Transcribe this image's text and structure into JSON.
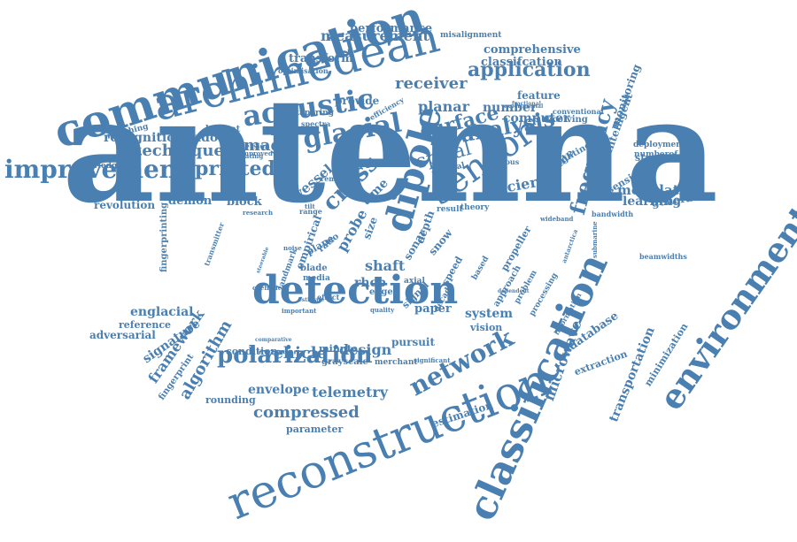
{
  "colors": {
    "word": "#4a7fb1",
    "background": "#ffffff"
  },
  "words": [
    "antenna",
    "communication",
    "archimedean",
    "detection",
    "reconstruction",
    "classification",
    "environmental",
    "sensor",
    "dipole",
    "acoustic",
    "improvement",
    "printed",
    "glacial",
    "polarization",
    "network",
    "frequency",
    "application",
    "analysis",
    "surface",
    "spiral",
    "cross",
    "technique",
    "image",
    "measurement",
    "recognition",
    "shadow",
    "receiver",
    "planar",
    "number",
    "computer",
    "feature",
    "comprehensive",
    "classifcation",
    "performance",
    "misalignment",
    "transform",
    "provide",
    "project",
    "spectra",
    "budget",
    "tapering",
    "efficiency",
    "optimisation",
    "matching",
    "knowledge",
    "revolution",
    "demon",
    "block",
    "vessel",
    "time",
    "glacier",
    "thwaite",
    "learning",
    "generative",
    "modulation",
    "sensing",
    "streaming",
    "deployment",
    "numberof",
    "monitoring",
    "intelligent",
    "lighting",
    "receiving",
    "conventional",
    "englacial",
    "reference",
    "adversarial",
    "signature",
    "framework",
    "algorithm",
    "fingerprint",
    "vehicle",
    "design",
    "pursuit",
    "grayscale",
    "merchant",
    "minute",
    "condition",
    "envelope",
    "telemetry",
    "compressed",
    "parameter",
    "rounding",
    "estimation",
    "microwave",
    "database",
    "extraction",
    "transportation",
    "minimization",
    "system",
    "paper",
    "vision",
    "shaft",
    "rhcp",
    "probe",
    "size",
    "snow",
    "speed",
    "signal",
    "edge",
    "axial",
    "decade",
    "based",
    "approach",
    "propeller",
    "problem",
    "processing",
    "information",
    "sonar",
    "depth",
    "empirical",
    "media",
    "plane",
    "ratio",
    "blade",
    "landmark",
    "effect",
    "quality",
    "important",
    "fingerprinting",
    "transmitter",
    "beamwidths",
    "bandwidth",
    "submarine",
    "antarctica",
    "wideband",
    "result",
    "theory",
    "vertical",
    "previous",
    "coefficient",
    "noise",
    "research",
    "range",
    "version",
    "evaluating",
    "improved",
    "removal",
    "experimental",
    "estimate",
    "comparative",
    "significant",
    "dependent",
    "steerable",
    "fractional",
    "tilt"
  ]
}
